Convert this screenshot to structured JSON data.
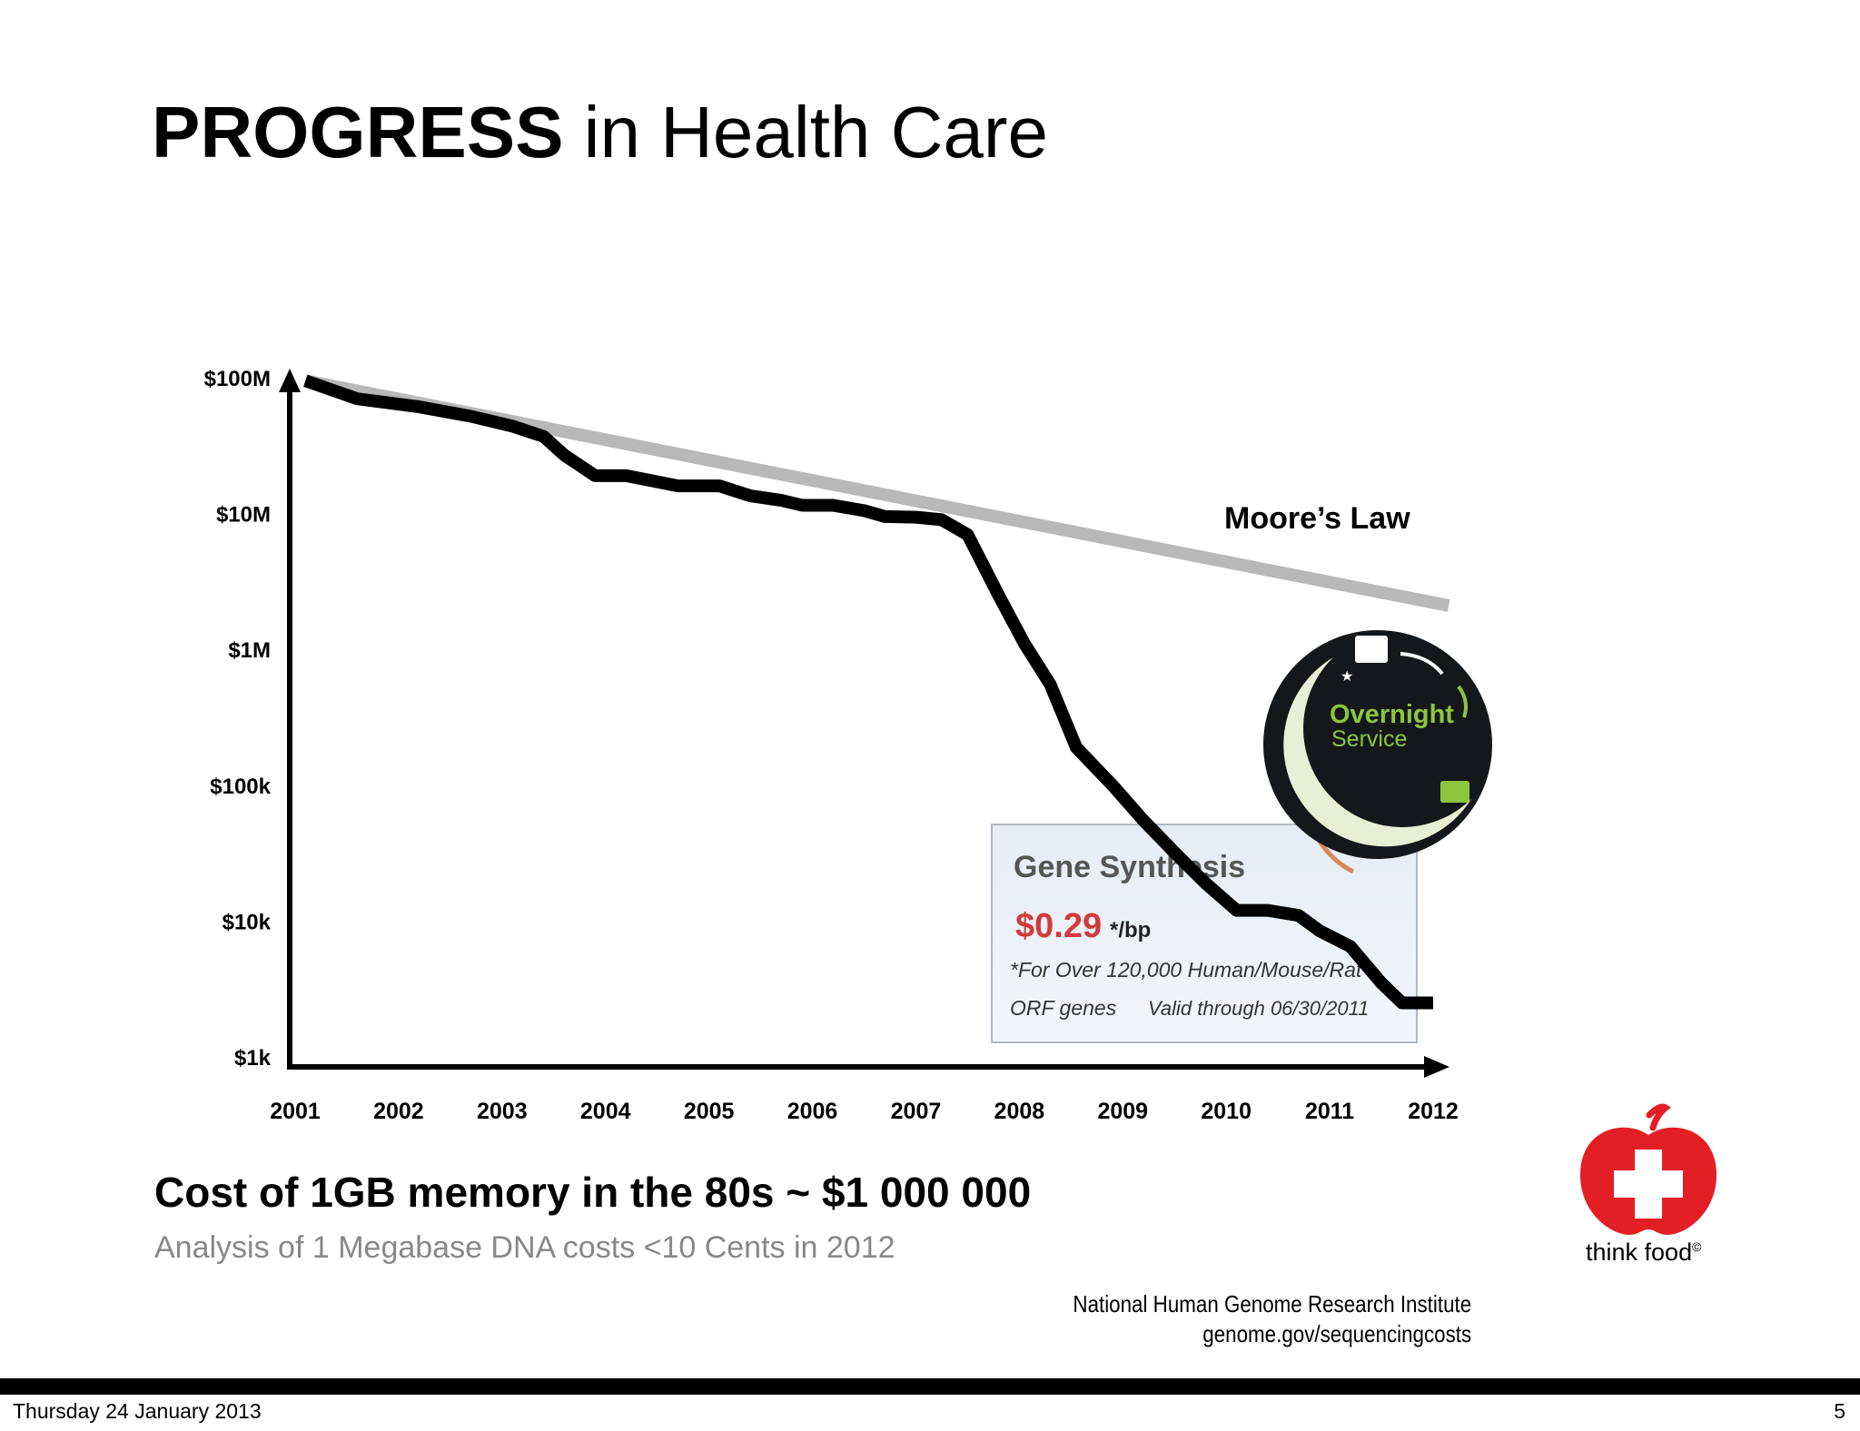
{
  "slide": {
    "title_bold": "PROGRESS",
    "title_rest": " in Health Care",
    "memory_line": "Cost of 1GB memory in the 80s ~ $1 000 000",
    "dna_line": "Analysis of 1 Megabase DNA costs <10 Cents in 2012",
    "source_line1": "National Human Genome Research Institute",
    "source_line2": "genome.gov/sequencingcosts",
    "footer_date": "Thursday 24 January 2013",
    "page_number": "5",
    "logo_text": "think food",
    "logo_mark": "©"
  },
  "inset": {
    "badge_line1": "Overnight",
    "badge_line2": "Service",
    "ad_title": "Gene Synthesis",
    "ad_price": "$0.29",
    "ad_price_unit": "*/bp",
    "ad_note1": "*For Over 120,000 Human/Mouse/Rat",
    "ad_note2": "ORF genes",
    "ad_note3": "Valid through 06/30/2011"
  },
  "chart_data": {
    "type": "line",
    "title": "",
    "xlabel": "",
    "ylabel": "",
    "y_scale": "log",
    "xlim": [
      2001,
      2012
    ],
    "ylim": [
      1000,
      100000000
    ],
    "x_ticks": [
      "2001",
      "2002",
      "2003",
      "2004",
      "2005",
      "2006",
      "2007",
      "2008",
      "2009",
      "2010",
      "2011",
      "2012"
    ],
    "y_ticks": [
      {
        "value": 1000,
        "label": "$1k"
      },
      {
        "value": 10000,
        "label": "$10k"
      },
      {
        "value": 100000,
        "label": "$100k"
      },
      {
        "value": 1000000,
        "label": "$1M"
      },
      {
        "value": 10000000,
        "label": "$10M"
      },
      {
        "value": 100000000,
        "label": "$100M"
      }
    ],
    "grid": false,
    "series": [
      {
        "name": "",
        "color": "#000000",
        "points": [
          [
            2001.1,
            95000000
          ],
          [
            2001.6,
            70000000
          ],
          [
            2002.2,
            61000000
          ],
          [
            2002.7,
            52000000
          ],
          [
            2003.1,
            44000000
          ],
          [
            2003.4,
            37000000
          ],
          [
            2003.6,
            27000000
          ],
          [
            2003.9,
            19000000
          ],
          [
            2004.2,
            19000000
          ],
          [
            2004.7,
            16000000
          ],
          [
            2005.1,
            16000000
          ],
          [
            2005.4,
            13500000
          ],
          [
            2005.7,
            12500000
          ],
          [
            2005.9,
            11500000
          ],
          [
            2006.2,
            11500000
          ],
          [
            2006.5,
            10500000
          ],
          [
            2006.7,
            9500000
          ],
          [
            2007.0,
            9400000
          ],
          [
            2007.25,
            9000000
          ],
          [
            2007.5,
            7000000
          ],
          [
            2007.8,
            2500000
          ],
          [
            2008.05,
            1100000
          ],
          [
            2008.3,
            550000
          ],
          [
            2008.55,
            190000
          ],
          [
            2008.9,
            100000
          ],
          [
            2009.2,
            55000
          ],
          [
            2009.5,
            32000
          ],
          [
            2009.8,
            19000
          ],
          [
            2010.1,
            12000
          ],
          [
            2010.4,
            12000
          ],
          [
            2010.7,
            11000
          ],
          [
            2010.9,
            8500
          ],
          [
            2011.2,
            6500
          ],
          [
            2011.5,
            3500
          ],
          [
            2011.7,
            2500
          ],
          [
            2012.0,
            2500
          ]
        ]
      },
      {
        "name": "Moore’s Law",
        "color": "#b8b8b8",
        "points": [
          [
            2001.1,
            95000000
          ],
          [
            2012.15,
            2100000
          ]
        ]
      }
    ],
    "annotations": [
      {
        "text": "Moore’s Law",
        "near_series": "Moore’s Law"
      }
    ]
  }
}
